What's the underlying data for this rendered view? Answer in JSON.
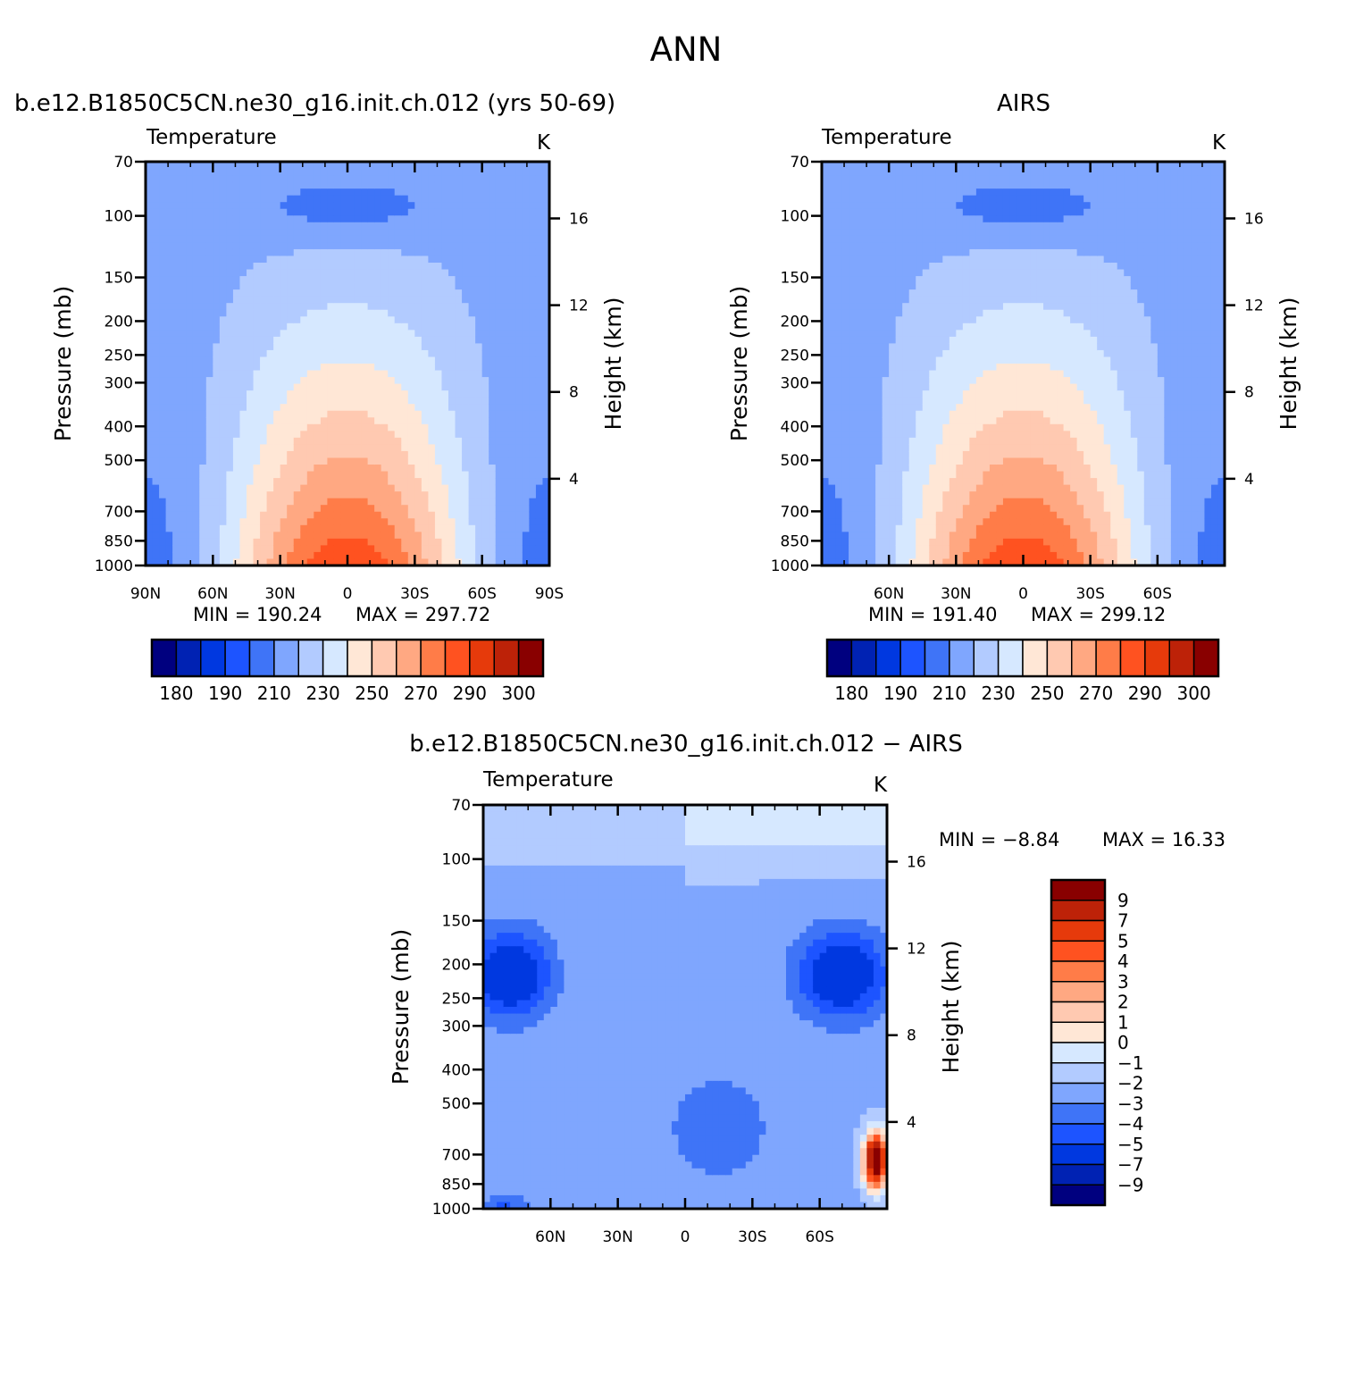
{
  "page_title": "ANN",
  "colors": {
    "temp_scale": [
      "#00007f",
      "#0022b3",
      "#0038e0",
      "#1d54ff",
      "#3f74f7",
      "#7fa6fe",
      "#b2cbff",
      "#d6e8ff",
      "#ffe7d6",
      "#ffc9b1",
      "#ffa882",
      "#ff7c48",
      "#ff5220",
      "#e63a0b",
      "#bd2208",
      "#890000"
    ],
    "diff_scale": [
      "#890000",
      "#bd2208",
      "#e63a0b",
      "#ff5220",
      "#ff7c48",
      "#ffa882",
      "#ffc9b1",
      "#ffe7d6",
      "#d6e8ff",
      "#b2cbff",
      "#7fa6fe",
      "#3f74f7",
      "#1d54ff",
      "#0038e0",
      "#0022b3",
      "#00007f"
    ]
  },
  "chart_data": [
    {
      "id": "model",
      "type": "heatmap",
      "title": "b.e12.B1850C5CN.ne30_g16.init.ch.012 (yrs 50-69)",
      "variable_label": "Temperature",
      "units": "K",
      "ylabel": "Pressure (mb)",
      "y2label": "Height (km)",
      "x_ticks": [
        "90N",
        "60N",
        "30N",
        "0",
        "30S",
        "60S",
        "90S"
      ],
      "xlim": [
        90,
        -90
      ],
      "y_ticks": [
        70,
        100,
        150,
        200,
        250,
        300,
        400,
        500,
        700,
        850,
        1000
      ],
      "ylim": [
        70,
        1000
      ],
      "y2_ticks": [
        16,
        12,
        8,
        4
      ],
      "min_label": "MIN =  190.24",
      "max_label": "MAX =  297.72",
      "min": 190.24,
      "max": 297.72,
      "colorbar_labels": [
        "180",
        "190",
        "210",
        "230",
        "250",
        "270",
        "290",
        "300"
      ],
      "contour_levels": [
        180,
        185,
        190,
        200,
        210,
        220,
        230,
        240,
        250,
        260,
        270,
        280,
        290,
        295,
        300
      ]
    },
    {
      "id": "obs",
      "type": "heatmap",
      "title": "AIRS",
      "variable_label": "Temperature",
      "units": "K",
      "ylabel": "Pressure (mb)",
      "y2label": "Height (km)",
      "x_ticks": [
        "60N",
        "30N",
        "0",
        "30S",
        "60S"
      ],
      "xlim": [
        90,
        -90
      ],
      "y_ticks": [
        70,
        100,
        150,
        200,
        250,
        300,
        400,
        500,
        700,
        850,
        1000
      ],
      "ylim": [
        70,
        1000
      ],
      "y2_ticks": [
        16,
        12,
        8,
        4
      ],
      "min_label": "MIN =  191.40",
      "max_label": "MAX =  299.12",
      "min": 191.4,
      "max": 299.12,
      "colorbar_labels": [
        "180",
        "190",
        "210",
        "230",
        "250",
        "270",
        "290",
        "300"
      ],
      "contour_levels": [
        180,
        185,
        190,
        200,
        210,
        220,
        230,
        240,
        250,
        260,
        270,
        280,
        290,
        295,
        300
      ]
    },
    {
      "id": "diff",
      "type": "heatmap",
      "title": "b.e12.B1850C5CN.ne30_g16.init.ch.012 − AIRS",
      "variable_label": "Temperature",
      "units": "K",
      "ylabel": "Pressure (mb)",
      "y2label": "Height (km)",
      "x_ticks": [
        "60N",
        "30N",
        "0",
        "30S",
        "60S"
      ],
      "xlim": [
        90,
        -90
      ],
      "y_ticks": [
        70,
        100,
        150,
        200,
        250,
        300,
        400,
        500,
        700,
        850,
        1000
      ],
      "ylim": [
        70,
        1000
      ],
      "y2_ticks": [
        16,
        12,
        8,
        4
      ],
      "min_label": "MIN =   −8.84",
      "max_label": "MAX =   16.33",
      "min": -8.84,
      "max": 16.33,
      "colorbar_labels": [
        "9",
        "7",
        "5",
        "4",
        "3",
        "2",
        "1",
        "0",
        "−1",
        "−2",
        "−3",
        "−4",
        "−5",
        "−7",
        "−9"
      ],
      "contour_levels": [
        9,
        7,
        5,
        4,
        3,
        2,
        1,
        0,
        -1,
        -2,
        -3,
        -4,
        -5,
        -7,
        -9
      ]
    }
  ]
}
